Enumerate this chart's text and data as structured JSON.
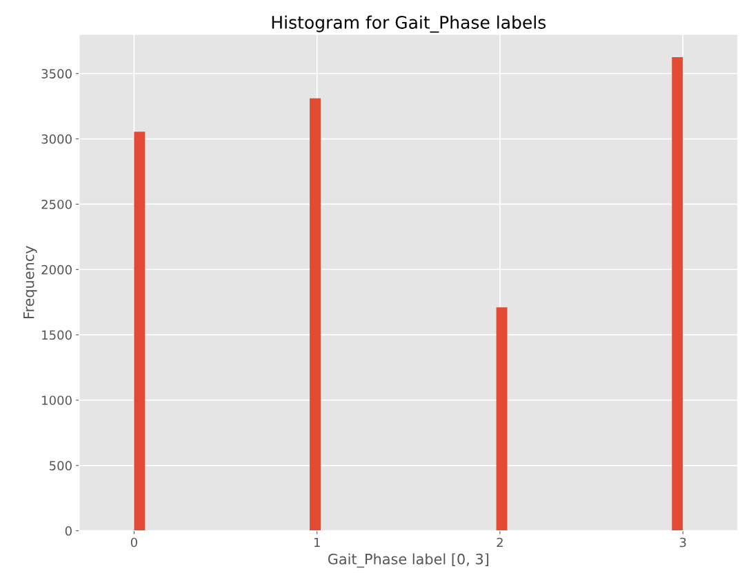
{
  "chart_data": {
    "type": "histogram",
    "title": "Histogram for Gait_Phase labels",
    "xlabel": "Gait_Phase label [0, 3]",
    "ylabel": "Frequency",
    "bins": [
      0,
      0.06,
      0.12,
      0.18,
      0.24,
      0.3,
      0.36,
      0.42,
      0.48,
      0.54,
      0.6,
      0.66,
      0.72,
      0.78,
      0.84,
      0.9,
      0.96,
      1.02,
      1.08,
      1.14,
      1.2,
      1.26,
      1.32,
      1.38,
      1.44,
      1.5,
      1.56,
      1.62,
      1.68,
      1.74,
      1.8,
      1.86,
      1.92,
      1.98,
      2.04,
      2.1,
      2.16,
      2.22,
      2.28,
      2.34,
      2.4,
      2.46,
      2.52,
      2.58,
      2.64,
      2.7,
      2.76,
      2.82,
      2.88,
      2.94,
      3.0
    ],
    "values": [
      3055,
      0,
      0,
      0,
      0,
      0,
      0,
      0,
      0,
      0,
      0,
      0,
      0,
      0,
      0,
      0,
      3310,
      0,
      0,
      0,
      0,
      0,
      0,
      0,
      0,
      0,
      0,
      0,
      0,
      0,
      0,
      0,
      0,
      1710,
      0,
      0,
      0,
      0,
      0,
      0,
      0,
      0,
      0,
      0,
      0,
      0,
      0,
      0,
      0,
      3625
    ],
    "color": "#e24a33",
    "xlim": [
      -0.3,
      3.3
    ],
    "xticks": [
      0,
      1,
      2,
      3
    ],
    "ylim": [
      0,
      3800
    ],
    "yticks": [
      0,
      500,
      1000,
      1500,
      2000,
      2500,
      3000,
      3500
    ],
    "grid": true
  }
}
